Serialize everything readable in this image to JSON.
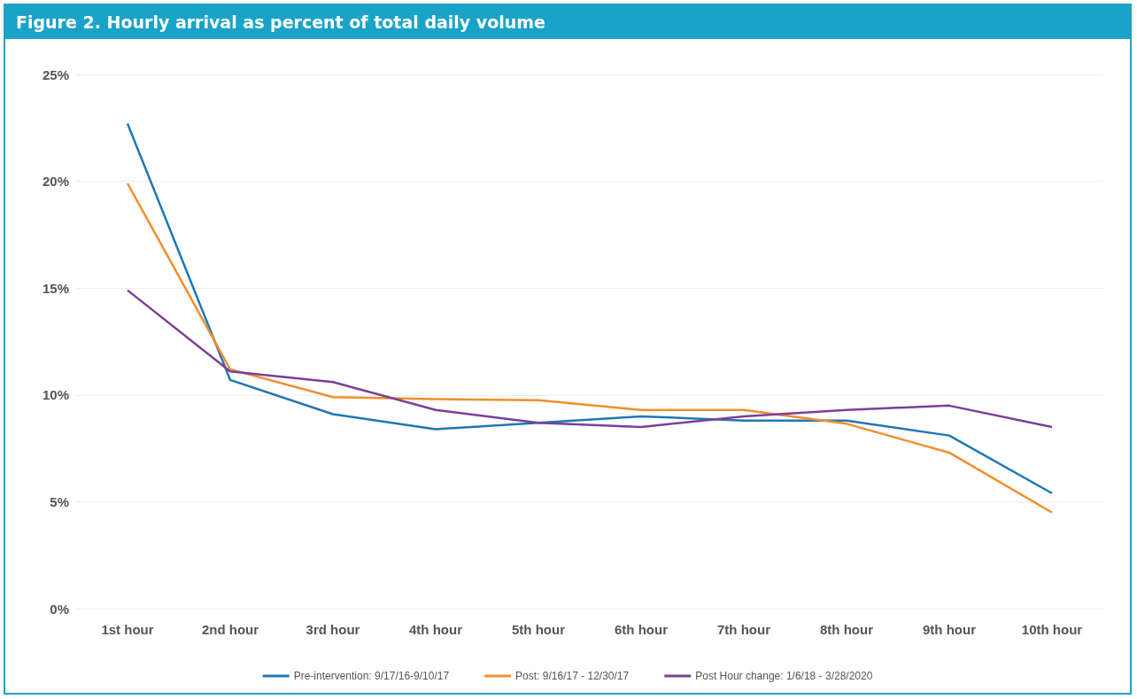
{
  "chart_data": {
    "type": "line",
    "title": "Figure 2. Hourly arrival as percent of total daily volume",
    "categories": [
      "1st hour",
      "2nd hour",
      "3rd hour",
      "4th hour",
      "5th hour",
      "6th hour",
      "7th hour",
      "8th hour",
      "9th hour",
      "10th hour"
    ],
    "series": [
      {
        "name": "Pre-intervention: 9/17/16-9/10/17",
        "color": "#1f77b4",
        "values": [
          22.7,
          10.7,
          9.1,
          8.4,
          8.7,
          9.0,
          8.8,
          8.8,
          8.1,
          5.4
        ]
      },
      {
        "name": "Post: 9/16/17 - 12/30/17",
        "color": "#f28e2b",
        "values": [
          19.9,
          11.2,
          9.9,
          9.8,
          9.75,
          9.3,
          9.3,
          8.65,
          7.3,
          4.5
        ]
      },
      {
        "name": "Post Hour change: 1/6/18 - 3/28/2020",
        "color": "#7b3f99",
        "values": [
          14.9,
          11.1,
          10.6,
          9.3,
          8.7,
          8.5,
          9.0,
          9.3,
          9.5,
          8.5
        ]
      }
    ],
    "ylim": [
      0,
      25
    ],
    "yticks": [
      {
        "value": 0,
        "label": "0%"
      },
      {
        "value": 5,
        "label": "5%"
      },
      {
        "value": 10,
        "label": "10%"
      },
      {
        "value": 15,
        "label": "15%"
      },
      {
        "value": 20,
        "label": "20%"
      },
      {
        "value": 25,
        "label": "25%"
      }
    ],
    "grid": "y",
    "legend": "bottom",
    "marker": "none",
    "line_style": "solid"
  }
}
